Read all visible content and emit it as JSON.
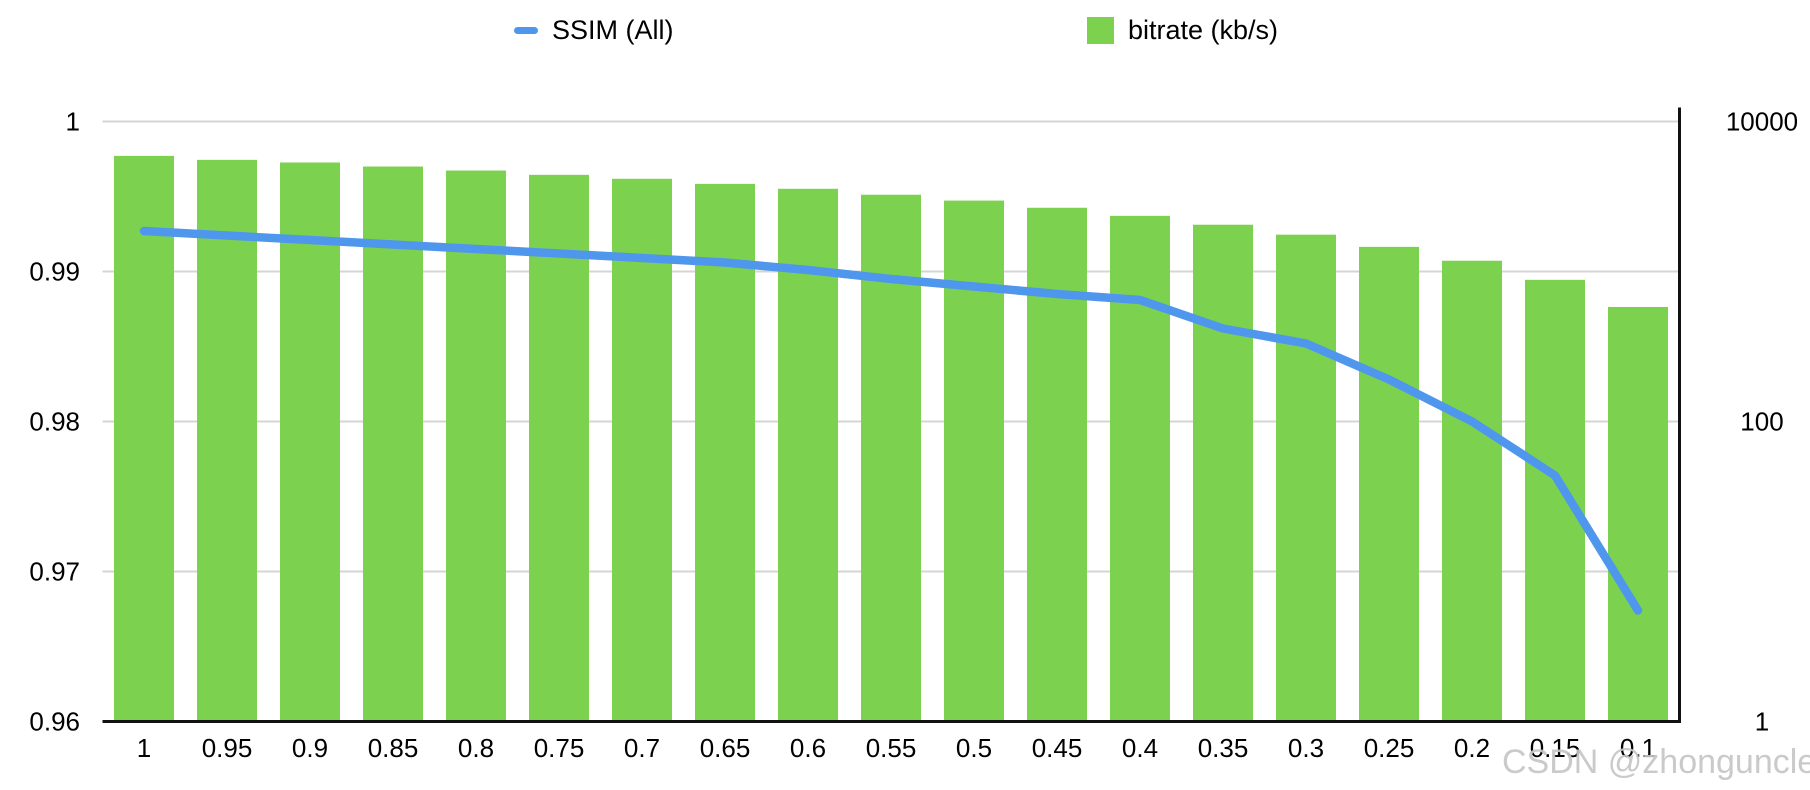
{
  "legend": {
    "ssim_label": "SSIM (All)",
    "bitrate_label": "bitrate (kb/s)"
  },
  "watermark": "CSDN @zhonguncle",
  "colors": {
    "bar_green": "#7cd24f",
    "line_blue": "#4f97ec",
    "gridline_gray": "#d5d5d5",
    "axis_black": "#111111",
    "label_black": "#000000",
    "watermark_gray": "#c6c6c6"
  },
  "chart_data": {
    "type": "bar",
    "subtype": "combo-bar-line-dual-axis",
    "title": "",
    "xlabel": "",
    "ylabel_left": "",
    "ylabel_right": "",
    "grid": true,
    "legend_position": "top",
    "categories": [
      "1",
      "0.95",
      "0.9",
      "0.85",
      "0.8",
      "0.75",
      "0.7",
      "0.65",
      "0.6",
      "0.55",
      "0.5",
      "0.45",
      "0.4",
      "0.35",
      "0.3",
      "0.25",
      "0.2",
      "0.15",
      "0.1"
    ],
    "series": [
      {
        "name": "SSIM (All)",
        "type": "line",
        "axis": "left",
        "values": [
          0.9927,
          0.9924,
          0.9921,
          0.9918,
          0.9915,
          0.9912,
          0.9909,
          0.9906,
          0.9901,
          0.9895,
          0.989,
          0.9885,
          0.9881,
          0.9862,
          0.9852,
          0.9828,
          0.98,
          0.9764,
          0.9674
        ]
      },
      {
        "name": "bitrate (kb/s)",
        "type": "bar",
        "axis": "right",
        "values": [
          5900,
          5550,
          5330,
          5010,
          4710,
          4410,
          4150,
          3840,
          3560,
          3250,
          2970,
          2660,
          2350,
          2050,
          1760,
          1460,
          1180,
          880,
          580
        ]
      }
    ],
    "left_axis": {
      "scale": "linear",
      "min": 0.96,
      "max": 1,
      "tick_values": [
        1,
        0.99,
        0.98,
        0.97,
        0.96
      ],
      "tick_labels": [
        "1",
        "0.99",
        "0.98",
        "0.97",
        "0.96"
      ]
    },
    "right_axis": {
      "scale": "log",
      "min": 1,
      "max": 10000,
      "tick_values": [
        10000,
        100,
        1
      ],
      "tick_labels": [
        "10000",
        "100",
        "1"
      ]
    }
  }
}
